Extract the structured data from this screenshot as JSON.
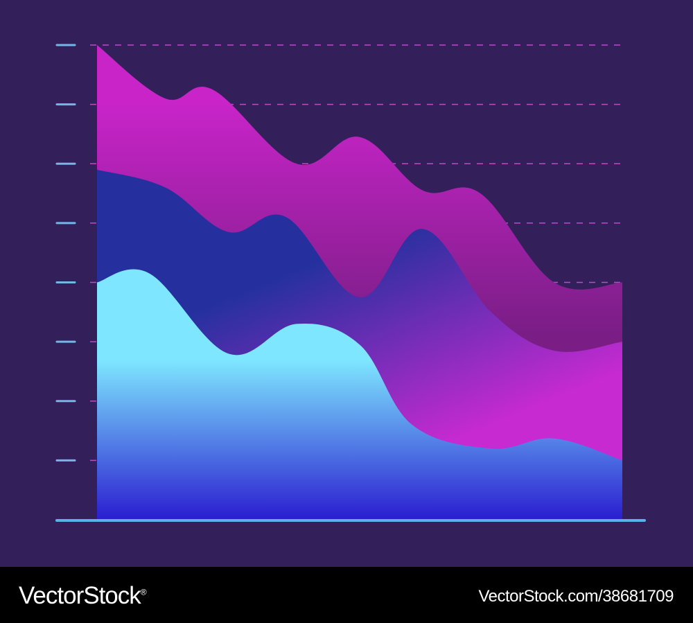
{
  "chart_data": {
    "type": "area",
    "stacked": true,
    "title": "",
    "xlabel": "",
    "ylabel": "",
    "ylim": [
      0,
      8
    ],
    "y_ticks": 8,
    "tick_labels_shown": false,
    "gridlines": "dashed",
    "smooth": true,
    "series": [
      {
        "color_top": "#7ee6ff",
        "color_bottom": "#2b1fd0",
        "x": [
          0,
          0.1,
          0.25,
          0.38,
          0.5,
          0.6,
          0.75,
          0.87,
          1.0
        ],
        "values": [
          4.0,
          4.15,
          2.8,
          3.3,
          2.95,
          1.6,
          1.2,
          1.37,
          1.0
        ]
      },
      {
        "color_top": "#25309e",
        "color_bottom": "#c62ad0",
        "x": [
          0,
          0.13,
          0.25,
          0.36,
          0.5,
          0.62,
          0.75,
          0.87,
          1.0
        ],
        "values": [
          5.9,
          5.6,
          4.85,
          5.1,
          3.75,
          4.9,
          3.5,
          2.85,
          3.0
        ]
      },
      {
        "color_top": "#c824c8",
        "color_bottom": "#7a1e86",
        "x": [
          0,
          0.13,
          0.22,
          0.38,
          0.5,
          0.62,
          0.73,
          0.87,
          1.0
        ],
        "values": [
          8.0,
          7.1,
          7.25,
          6.0,
          6.45,
          5.55,
          5.5,
          4.0,
          4.0
        ]
      }
    ]
  },
  "colors": {
    "background": "#33205b",
    "grid": "#b44fc4",
    "ticks": "#72b7e8",
    "axis": "#5bb2e8"
  },
  "footer": {
    "brand": "VectorStock",
    "brand_mark": "®",
    "image_id": "VectorStock.com/38681709"
  }
}
